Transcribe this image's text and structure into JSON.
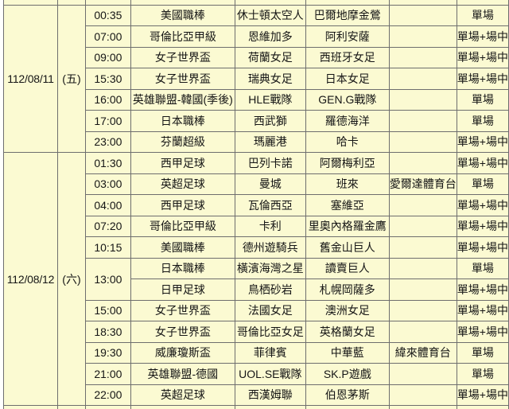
{
  "colors": {
    "cell_background": "#FBFAD2",
    "grid_border": "#6E6E6E",
    "text": "#151515",
    "page_background": "#FFFFFF"
  },
  "table": {
    "bet_type_single": "單場",
    "bet_type_single_live": "單場+場中",
    "groups": [
      {
        "date": "112/08/11",
        "weekday": "(五)",
        "rows": [
          {
            "time": "00:35",
            "league": "美國職棒",
            "home": "休士頓太空人",
            "away": "巴爾地摩金鶯",
            "channel": "",
            "bet": "單場"
          },
          {
            "time": "07:00",
            "league": "哥倫比亞甲級",
            "home": "恩維加多",
            "away": "阿利安薩",
            "channel": "",
            "bet": "單場+場中"
          },
          {
            "time": "09:00",
            "league": "女子世界盃",
            "home": "荷蘭女足",
            "away": "西班牙女足",
            "channel": "",
            "bet": "單場+場中"
          },
          {
            "time": "15:30",
            "league": "女子世界盃",
            "home": "瑞典女足",
            "away": "日本女足",
            "channel": "",
            "bet": "單場+場中"
          },
          {
            "time": "16:00",
            "league": "英雄聯盟-韓國(季後)",
            "home": "HLE戰隊",
            "away": "GEN.G戰隊",
            "channel": "",
            "bet": "單場"
          },
          {
            "time": "17:00",
            "league": "日本職棒",
            "home": "西武獅",
            "away": "羅德海洋",
            "channel": "",
            "bet": "單場"
          },
          {
            "time": "23:00",
            "league": "芬蘭超級",
            "home": "瑪麗港",
            "away": "哈卡",
            "channel": "",
            "bet": "單場+場中"
          }
        ]
      },
      {
        "date": "112/08/12",
        "weekday": "(六)",
        "rows": [
          {
            "time": "01:30",
            "league": "西甲足球",
            "home": "巴列卡諾",
            "away": "阿爾梅利亞",
            "channel": "",
            "bet": "單場+場中"
          },
          {
            "time": "03:00",
            "league": "英超足球",
            "home": "曼城",
            "away": "班來",
            "channel": "愛爾達體育台",
            "bet": "單場"
          },
          {
            "time": "04:00",
            "league": "西甲足球",
            "home": "瓦倫西亞",
            "away": "塞維亞",
            "channel": "",
            "bet": "單場+場中"
          },
          {
            "time": "07:20",
            "league": "哥倫比亞甲級",
            "home": "卡利",
            "away": "里奧內格羅金鷹",
            "channel": "",
            "bet": "單場+場中"
          },
          {
            "time": "10:15",
            "league": "美國職棒",
            "home": "德州遊騎兵",
            "away": "舊金山巨人",
            "channel": "",
            "bet": "單場+場中"
          },
          {
            "time": "13:00",
            "league": "日本職棒",
            "home": "橫濱海灣之星",
            "away": "讀賣巨人",
            "channel": "",
            "bet": "單場",
            "time_rowspan": 2
          },
          {
            "time": "",
            "league": "日甲足球",
            "home": "鳥栖砂岩",
            "away": "札幌岡薩多",
            "channel": "",
            "bet": "單場+場中",
            "time_continued": true
          },
          {
            "time": "15:00",
            "league": "女子世界盃",
            "home": "法國女足",
            "away": "澳洲女足",
            "channel": "",
            "bet": "單場+場中"
          },
          {
            "time": "18:30",
            "league": "女子世界盃",
            "home": "哥倫比亞女足",
            "away": "英格蘭女足",
            "channel": "",
            "bet": "單場+場中"
          },
          {
            "time": "19:30",
            "league": "威廉瓊斯盃",
            "home": "菲律賓",
            "away": "中華藍",
            "channel": "緯來體育台",
            "bet": "單場"
          },
          {
            "time": "21:00",
            "league": "英雄聯盟-德國",
            "home": "UOL.SE戰隊",
            "away": "SK.P遊戲",
            "channel": "",
            "bet": "單場"
          },
          {
            "time": "22:00",
            "league": "英超足球",
            "home": "西漢姆聯",
            "away": "伯恩茅斯",
            "channel": "",
            "bet": "單場+場中"
          }
        ]
      }
    ]
  }
}
